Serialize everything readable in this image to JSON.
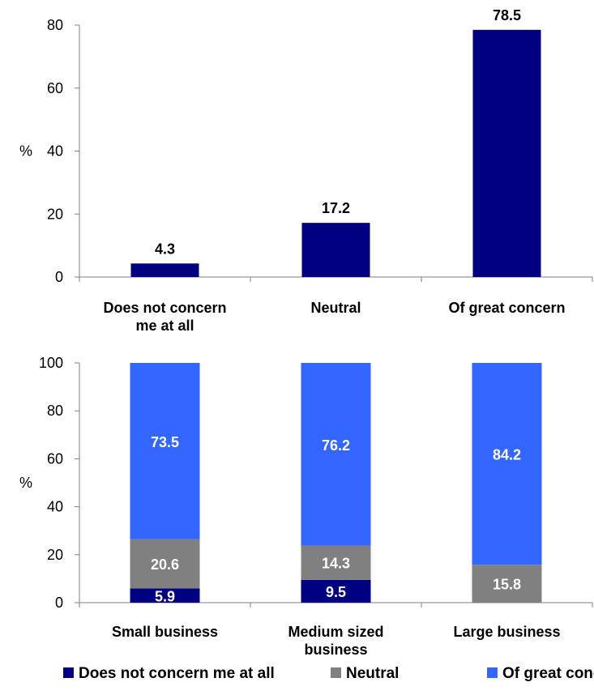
{
  "colors": {
    "does_not_concern": "#000080",
    "neutral": "#808080",
    "great_concern": "#3366FF",
    "axis": "#808080"
  },
  "chart_data": [
    {
      "type": "bar",
      "ylabel": "%",
      "ylim": [
        0,
        80
      ],
      "yticks": [
        0,
        20,
        40,
        60,
        80
      ],
      "categories": [
        [
          "Does not concern",
          "me at all"
        ],
        [
          "Neutral"
        ],
        [
          "Of great concern"
        ]
      ],
      "values": [
        4.3,
        17.2,
        78.5
      ],
      "value_labels": [
        "4.3",
        "17.2",
        "78.5"
      ],
      "color": "#000080",
      "grid": false
    },
    {
      "type": "bar",
      "stacked": true,
      "ylabel": "%",
      "ylim": [
        0,
        100
      ],
      "yticks": [
        0,
        20,
        40,
        60,
        80,
        100
      ],
      "categories": [
        [
          "Small business"
        ],
        [
          "Medium sized",
          "business"
        ],
        [
          "Large business"
        ]
      ],
      "series": [
        {
          "name": "Does not concern me at all",
          "values": [
            5.9,
            9.5,
            0
          ],
          "labels": [
            "5.9",
            "9.5",
            ""
          ],
          "color": "#000080"
        },
        {
          "name": "Neutral",
          "values": [
            20.6,
            14.3,
            15.8
          ],
          "labels": [
            "20.6",
            "14.3",
            "15.8"
          ],
          "color": "#808080"
        },
        {
          "name": "Of great concern",
          "values": [
            73.5,
            76.2,
            84.2
          ],
          "labels": [
            "73.5",
            "76.2",
            "84.2"
          ],
          "color": "#3366FF"
        }
      ],
      "legend": "bottom",
      "grid": false
    }
  ]
}
